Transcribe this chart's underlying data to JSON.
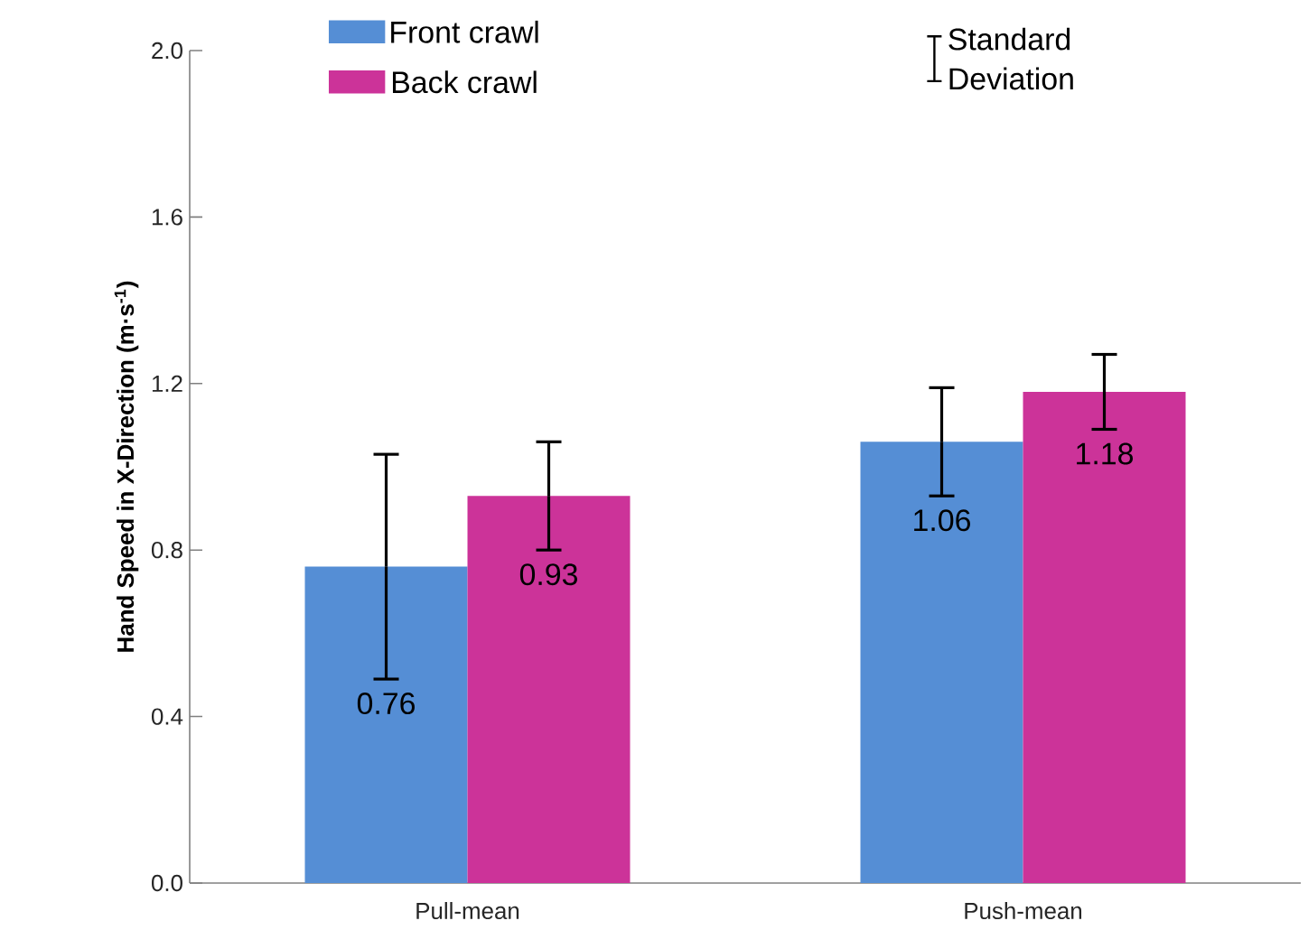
{
  "chart_data": {
    "type": "bar",
    "ylabel": "**Hand Speed in X-Direction (m·s$^{-1}$)**",
    "categories": [
      "Pull-mean",
      "Push-mean"
    ],
    "series": [
      {
        "name": "Front crawl",
        "color": "#558ed5",
        "values": [
          0.76,
          1.06
        ],
        "errors": [
          0.27,
          0.13
        ]
      },
      {
        "name": "Back crawl",
        "color": "#cc3399",
        "values": [
          0.93,
          1.18
        ],
        "errors": [
          0.13,
          0.09
        ]
      }
    ],
    "ylim": [
      0,
      2
    ],
    "yticks": [
      {
        "value": 0,
        "label": "0.0"
      },
      {
        "value": 0.4,
        "label": "0.4"
      },
      {
        "value": 0.8,
        "label": "0.8"
      },
      {
        "value": 1.2,
        "label": "1.2"
      },
      {
        "value": 1.6,
        "label": "1.6"
      },
      {
        "value": 2,
        "label": "2.0"
      }
    ],
    "data_labels": true,
    "legend": "top",
    "annotations": [
      "Standard Deviation"
    ]
  }
}
